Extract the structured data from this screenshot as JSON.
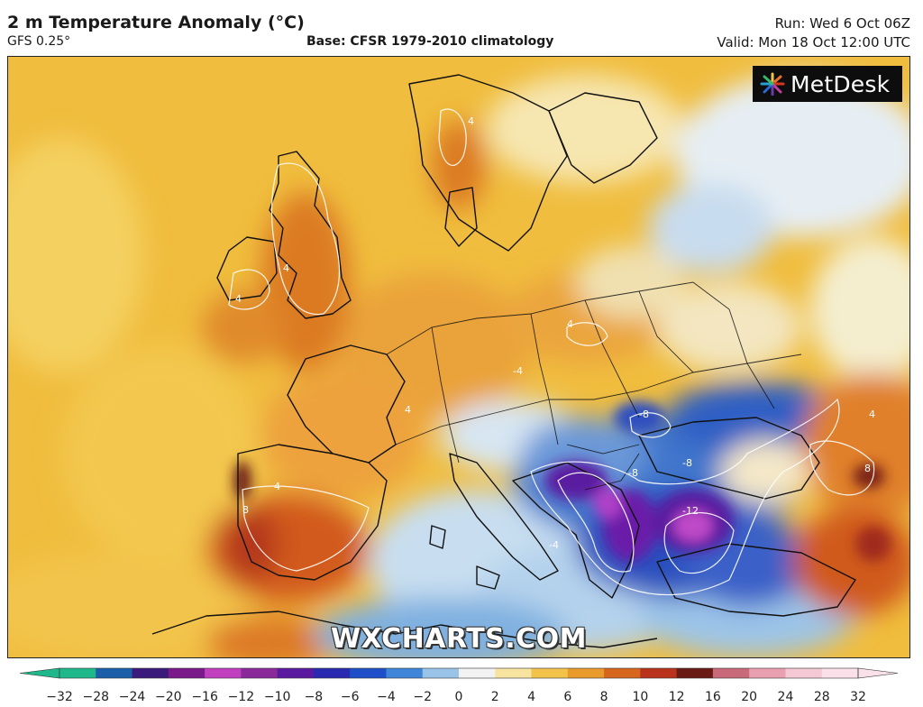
{
  "header": {
    "title": "2 m Temperature Anomaly (°C)",
    "model": "GFS 0.25°",
    "base": "Base: CFSR 1979-2010 climatology",
    "run": "Run: Wed 6 Oct 06Z",
    "valid": "Valid: Mon 18 Oct 12:00 UTC"
  },
  "branding": {
    "logo": "MetDesk",
    "watermark": "WXCHARTS.COM"
  },
  "map": {
    "contour_labels": [
      "4",
      "4",
      "4",
      "4",
      "4",
      "4",
      "-4",
      "-4",
      "-8",
      "-8",
      "-8",
      "-12",
      "8",
      "8",
      "4"
    ]
  },
  "colorbar": {
    "ticks": [
      "−32",
      "−28",
      "−24",
      "−20",
      "−16",
      "−12",
      "−10",
      "−8",
      "−6",
      "−4",
      "−2",
      "0",
      "2",
      "4",
      "6",
      "8",
      "10",
      "12",
      "16",
      "20",
      "24",
      "28",
      "32"
    ],
    "colors": [
      "#1fb88a",
      "#1b5fa8",
      "#3a1a7a",
      "#7a1a8a",
      "#c040c0",
      "#8a2a9a",
      "#5a1aa0",
      "#2a2ab0",
      "#1e4fc8",
      "#3f86d8",
      "#9ac3e8",
      "#f2f2f2",
      "#f7e4a0",
      "#f2c24a",
      "#e89a2a",
      "#d6661e",
      "#b8321c",
      "#6a1a14",
      "#c86a7a",
      "#e8a0b0",
      "#f4c8d4",
      "#fae0e8"
    ]
  }
}
